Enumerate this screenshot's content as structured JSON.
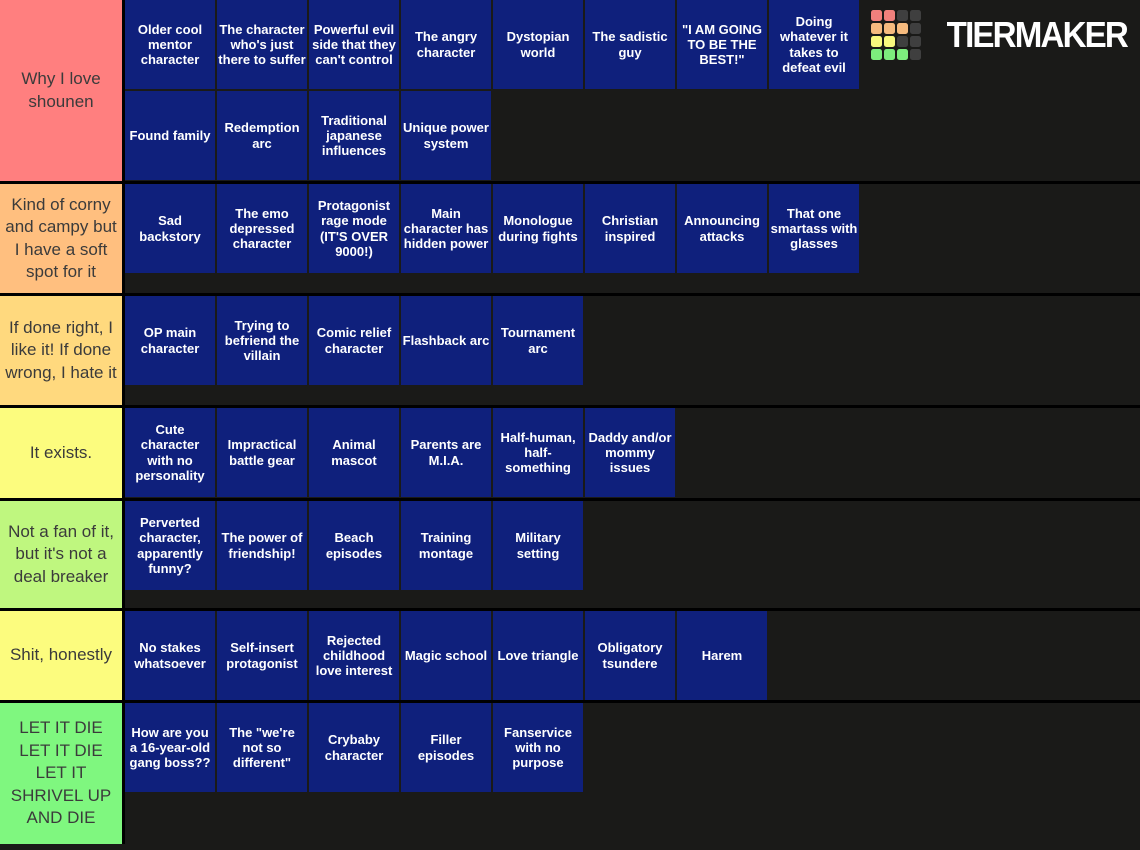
{
  "page": {
    "background_color": "#1A1A18",
    "separator_color": "#000000"
  },
  "brand": {
    "name": "TIERMAKER",
    "grid_colors": {
      "red": "#F0807C",
      "orange": "#F5BA7E",
      "yellow": "#F8F87E",
      "green": "#7DED7D",
      "dark": "#3F3F3F"
    },
    "grid_pattern": [
      [
        "red",
        "red",
        "dark",
        "dark"
      ],
      [
        "orange",
        "orange",
        "orange",
        "dark"
      ],
      [
        "yellow",
        "yellow",
        "dark",
        "dark"
      ],
      [
        "green",
        "green",
        "green",
        "dark"
      ]
    ]
  },
  "tile_style": {
    "background_color": "#0F207C",
    "text_color": "#FFFFFF"
  },
  "tiers": [
    {
      "label": "Why I love shounen",
      "color": "#FF7F7F",
      "items": [
        "Older cool mentor character",
        "The character who's just there to suffer",
        "Powerful evil side that they can't control",
        "The angry character",
        "Dystopian world",
        "The sadistic guy",
        "\"I AM GOING TO BE THE BEST!\"",
        "Doing whatever it takes to defeat evil",
        "Found family",
        "Redemption arc",
        "Traditional japanese influences",
        "Unique power system"
      ]
    },
    {
      "label": "Kind of corny and campy but I have a soft spot for it",
      "color": "#FFBF7F",
      "items": [
        "Sad backstory",
        "The emo depressed character",
        "Protagonist rage mode (IT'S OVER 9000!)",
        "Main character has hidden power",
        "Monologue during fights",
        "Christian inspired",
        "Announcing attacks",
        "That one smartass with glasses"
      ]
    },
    {
      "label": "If done right, I like it! If done wrong, I hate it",
      "color": "#FFD97E",
      "items": [
        "OP main character",
        "Trying to befriend the villain",
        "Comic relief character",
        "Flashback arc",
        "Tournament arc"
      ]
    },
    {
      "label": "It exists.",
      "color": "#FCFC7E",
      "items": [
        "Cute character with no personality",
        "Impractical battle gear",
        "Animal mascot",
        "Parents are M.I.A.",
        "Half-human, half-something",
        "Daddy and/or mommy issues"
      ]
    },
    {
      "label": "Not a fan of it, but it's not a deal breaker",
      "color": "#BFF77F",
      "items": [
        "Perverted character, apparently funny?",
        "The power of friendship!",
        "Beach episodes",
        "Training montage",
        "Military setting"
      ]
    },
    {
      "label": "Shit, honestly",
      "color": "#FCFC7E",
      "items": [
        "No stakes whatsoever",
        "Self-insert protagonist",
        "Rejected childhood love interest",
        "Magic school",
        "Love triangle",
        "Obligatory tsundere",
        "Harem"
      ]
    },
    {
      "label": "LET IT DIE LET IT DIE LET IT SHRIVEL UP AND DIE",
      "color": "#7FF77F",
      "items": [
        "How are you a 16-year-old gang boss??",
        "The \"we're not so different\"",
        "Crybaby character",
        "Filler episodes",
        "Fanservice with no purpose"
      ]
    }
  ]
}
